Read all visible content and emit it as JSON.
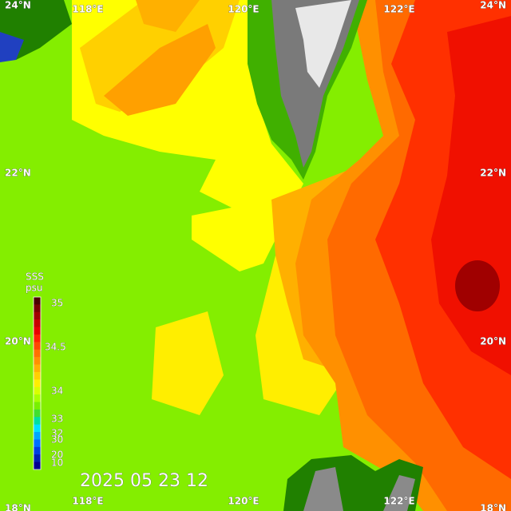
{
  "map": {
    "lon_labels": [
      "118°E",
      "120°E",
      "122°E"
    ],
    "lat_labels": [
      "24°N",
      "22°N",
      "20°N",
      "18°N"
    ],
    "legend": {
      "title": "SSS",
      "unit": "psu",
      "labels": [
        "35",
        "34.5",
        "34",
        "33",
        "32",
        "30",
        "20",
        "10"
      ],
      "colors": [
        "#4a0000",
        "#7a0000",
        "#a00000",
        "#c80000",
        "#e80000",
        "#ff2000",
        "#ff4800",
        "#ff7000",
        "#ff9000",
        "#ffb000",
        "#ffd000",
        "#ffee00",
        "#d8ff00",
        "#a8ff00",
        "#78f000",
        "#40e030",
        "#00e0a0",
        "#00e0ff",
        "#00a8ff",
        "#0070ff",
        "#0040e0",
        "#0020b0",
        "#000090"
      ]
    },
    "timestamp": "2025 05 23 12"
  }
}
